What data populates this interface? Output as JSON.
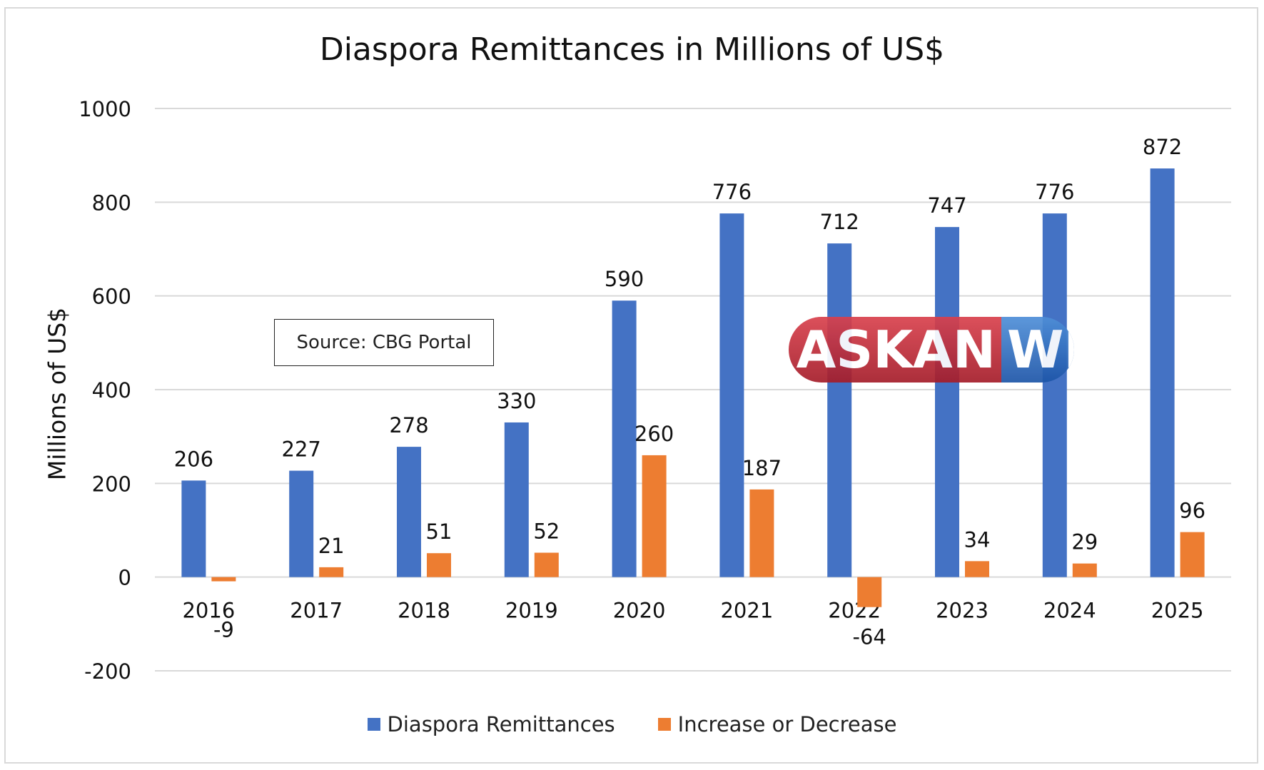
{
  "chart_data": {
    "type": "bar",
    "title": "Diaspora Remittances in Millions of US$",
    "xlabel": "",
    "ylabel": "Millions of US$",
    "categories": [
      "2016",
      "2017",
      "2018",
      "2019",
      "2020",
      "2021",
      "2022",
      "2023",
      "2024",
      "2025"
    ],
    "series": [
      {
        "name": "Diaspora Remittances",
        "color": "#4472c4",
        "values": [
          206,
          227,
          278,
          330,
          590,
          776,
          712,
          747,
          776,
          872
        ]
      },
      {
        "name": "Increase or Decrease",
        "color": "#ed7d31",
        "values": [
          -9,
          21,
          51,
          52,
          260,
          187,
          -64,
          34,
          29,
          96
        ]
      }
    ],
    "ylim": [
      -200,
      1000
    ],
    "yticks": [
      -200,
      0,
      200,
      400,
      600,
      800,
      1000
    ],
    "grid": true,
    "legend_position": "bottom",
    "annotation": "Source: CBG Portal"
  },
  "watermark": {
    "left": "ASKAN",
    "right": "WI"
  }
}
